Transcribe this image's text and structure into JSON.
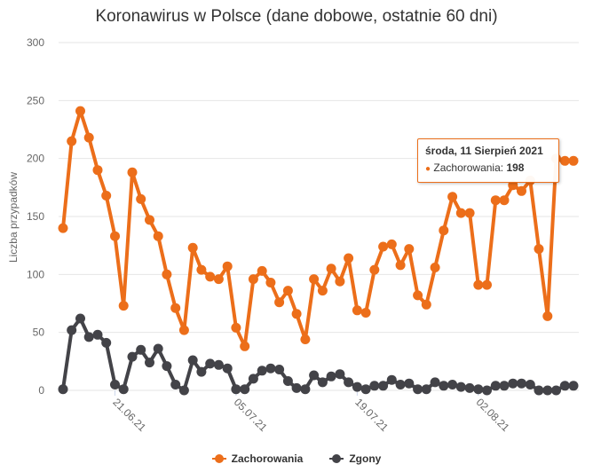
{
  "title": "Koronawirus w Polsce (dane dobowe, ostatnie 60 dni)",
  "chart_data": {
    "type": "line",
    "title": "Koronawirus w Polsce (dane dobowe, ostatnie 60 dni)",
    "ylabel": "Liczba przypadków",
    "xlabel": "",
    "ylim": [
      0,
      300
    ],
    "yticks": [
      0,
      50,
      100,
      150,
      200,
      250,
      300
    ],
    "x_tick_labels": [
      {
        "index": 6,
        "label": "21.06.21"
      },
      {
        "index": 20,
        "label": "05.07.21"
      },
      {
        "index": 34,
        "label": "19.07.21"
      },
      {
        "index": 48,
        "label": "02.08.21"
      }
    ],
    "grid": true,
    "legend_position": "bottom",
    "series": [
      {
        "name": "Zachorowania",
        "color": "#ec6e1a",
        "values": [
          140,
          215,
          241,
          218,
          190,
          168,
          133,
          73,
          188,
          165,
          147,
          133,
          100,
          71,
          52,
          123,
          104,
          98,
          96,
          107,
          54,
          38,
          96,
          103,
          93,
          76,
          86,
          66,
          44,
          96,
          86,
          105,
          94,
          114,
          69,
          67,
          104,
          124,
          126,
          108,
          122,
          82,
          74,
          106,
          138,
          167,
          153,
          153,
          91,
          91,
          164,
          164,
          177,
          172,
          181,
          122,
          64,
          200,
          198,
          198
        ]
      },
      {
        "name": "Zgony",
        "color": "#434348",
        "values": [
          1,
          52,
          62,
          46,
          48,
          41,
          5,
          1,
          29,
          35,
          24,
          36,
          21,
          5,
          0,
          26,
          16,
          23,
          22,
          19,
          1,
          1,
          10,
          17,
          19,
          18,
          8,
          2,
          1,
          13,
          7,
          12,
          14,
          7,
          3,
          1,
          4,
          4,
          9,
          5,
          6,
          1,
          1,
          7,
          4,
          5,
          3,
          2,
          1,
          0,
          4,
          4,
          6,
          6,
          5,
          0,
          0,
          0,
          4,
          4
        ]
      }
    ]
  },
  "tooltip": {
    "title": "środa, 11 Sierpień 2021",
    "series_label": "Zachorowania",
    "value": "198"
  },
  "legend": {
    "items": [
      {
        "label": "Zachorowania",
        "color": "#ec6e1a"
      },
      {
        "label": "Zgony",
        "color": "#434348"
      }
    ]
  }
}
